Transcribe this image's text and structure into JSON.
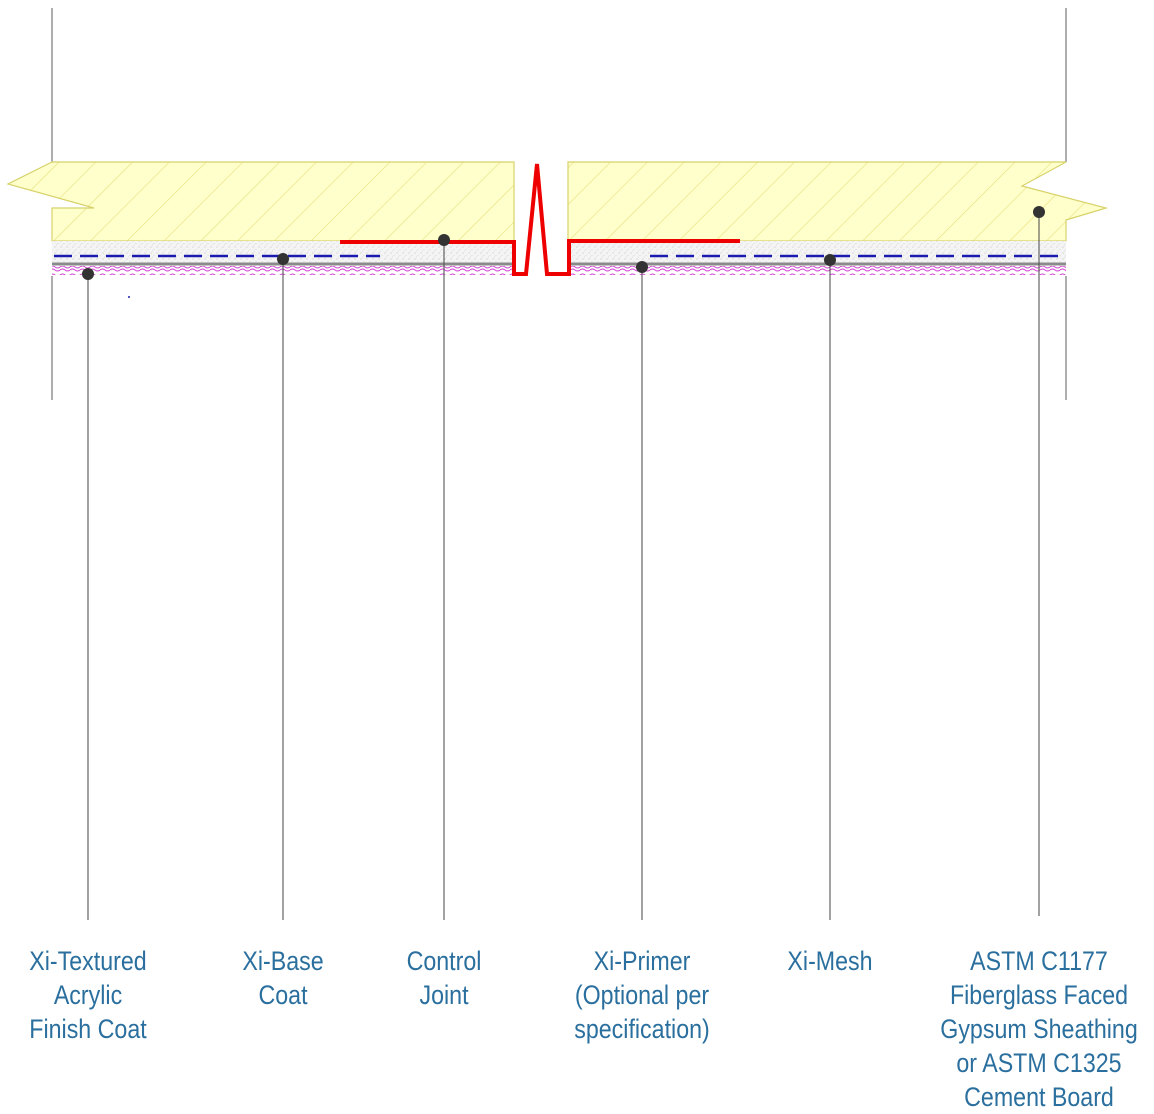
{
  "diagram": {
    "colors": {
      "sheathing_fill": "#ffffcc",
      "sheathing_hatch": "#e6e07a",
      "sheathing_outline": "#d8d26a",
      "base_coat": "#f2f2f2",
      "mesh": "#1a1ab0",
      "primer": "#8a8a8a",
      "finish": "#d040d0",
      "control_joint": "#ee0000",
      "leader": "#555555",
      "dot": "#333333",
      "label": "#2a6f9e"
    },
    "labels": [
      {
        "id": "finish",
        "lines": [
          "Xi-Textured",
          "Acrylic",
          "Finish Coat"
        ]
      },
      {
        "id": "basecoat",
        "lines": [
          "Xi-Base",
          "Coat"
        ]
      },
      {
        "id": "joint",
        "lines": [
          "Control",
          "Joint"
        ]
      },
      {
        "id": "primer",
        "lines": [
          "Xi-Primer",
          "(Optional per",
          "specification)"
        ]
      },
      {
        "id": "mesh",
        "lines": [
          "Xi-Mesh"
        ]
      },
      {
        "id": "sheathing",
        "lines": [
          "ASTM C1177",
          "Fiberglass Faced",
          "Gypsum Sheathing",
          "or ASTM C1325",
          "Cement Board"
        ]
      }
    ]
  }
}
